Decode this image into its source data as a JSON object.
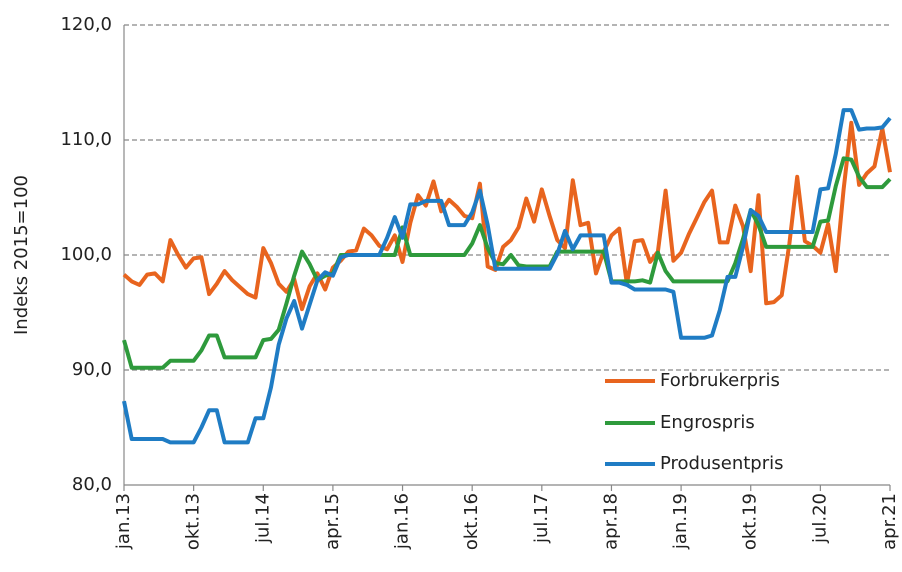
{
  "chart_data": {
    "type": "line",
    "ylabel": "Indeks 2015=100",
    "categories": [
      "jan.13",
      null,
      null,
      null,
      null,
      null,
      null,
      null,
      null,
      "okt.13",
      null,
      null,
      null,
      null,
      null,
      null,
      null,
      null,
      "jul.14",
      null,
      null,
      null,
      null,
      null,
      null,
      null,
      null,
      "apr.15",
      null,
      null,
      null,
      null,
      null,
      null,
      null,
      null,
      "jan.16",
      null,
      null,
      null,
      null,
      null,
      null,
      null,
      null,
      "okt.16",
      null,
      null,
      null,
      null,
      null,
      null,
      null,
      null,
      "jul.17",
      null,
      null,
      null,
      null,
      null,
      null,
      null,
      null,
      "apr.18",
      null,
      null,
      null,
      null,
      null,
      null,
      null,
      null,
      "jan.19",
      null,
      null,
      null,
      null,
      null,
      null,
      null,
      null,
      "okt.19",
      null,
      null,
      null,
      null,
      null,
      null,
      null,
      null,
      "jul.20",
      null,
      null,
      null,
      null,
      null,
      null,
      null,
      null,
      "apr.21"
    ],
    "series": [
      {
        "name": "Forbrukerpris",
        "color": "#e8641e",
        "values": [
          98.3,
          97.7,
          97.4,
          98.3,
          98.4,
          97.7,
          101.3,
          100,
          98.9,
          99.7,
          99.8,
          96.6,
          97.5,
          98.6,
          97.8,
          97.2,
          96.6,
          96.3,
          100.6,
          99.3,
          97.5,
          96.8,
          97.9,
          95.3,
          97.3,
          98.4,
          97,
          98.9,
          99.5,
          100.3,
          100.4,
          102.3,
          101.7,
          100.8,
          100.5,
          101.7,
          99.4,
          102.8,
          105.2,
          104.3,
          106.4,
          103.8,
          104.8,
          104.2,
          103.4,
          103.2,
          106.2,
          99,
          98.7,
          100.7,
          101.3,
          102.4,
          104.9,
          102.9,
          105.7,
          103.4,
          101.3,
          100.6,
          106.5,
          102.6,
          102.8,
          98.4,
          100.3,
          101.7,
          102.3,
          97.5,
          101.2,
          101.3,
          99.4,
          100.3,
          105.6,
          99.5,
          100.2,
          101.8,
          103.2,
          104.6,
          105.6,
          101.1,
          101.1,
          104.3,
          102.5,
          98.6,
          105.2,
          95.8,
          95.9,
          96.5,
          101,
          106.8,
          101.2,
          100.8,
          100.2,
          102.7,
          98.6,
          105.7,
          111.5,
          106.1,
          107.1,
          107.7,
          111,
          107.2
        ]
      },
      {
        "name": "Engrospris",
        "color": "#2e9a3c",
        "values": [
          92.6,
          90.2,
          90.2,
          90.2,
          90.2,
          90.2,
          90.8,
          90.8,
          90.8,
          90.8,
          91.7,
          93,
          93,
          91.1,
          91.1,
          91.1,
          91.1,
          91.1,
          92.6,
          92.7,
          93.5,
          95.8,
          98.2,
          100.3,
          99.2,
          97.8,
          98.2,
          98.4,
          100,
          100,
          100,
          100,
          100,
          100,
          100,
          100,
          102.4,
          100,
          100,
          100,
          100,
          100,
          100,
          100,
          100,
          101,
          102.6,
          100.6,
          99.3,
          99.2,
          100,
          99.1,
          99,
          99,
          99,
          99,
          100.3,
          100.3,
          100.3,
          100.3,
          100.3,
          100.3,
          100.3,
          97.7,
          97.7,
          97.7,
          97.7,
          97.8,
          97.6,
          100.2,
          98.6,
          97.7,
          97.7,
          97.7,
          97.7,
          97.7,
          97.7,
          97.7,
          97.7,
          99.3,
          101.4,
          103.9,
          102.6,
          100.7,
          100.7,
          100.7,
          100.7,
          100.7,
          100.7,
          100.7,
          102.9,
          103,
          106,
          108.4,
          108.3,
          106.8,
          105.9,
          105.9,
          105.9,
          106.6
        ]
      },
      {
        "name": "Produsentpris",
        "color": "#1f7cc4",
        "values": [
          87.3,
          84,
          84,
          84,
          84,
          84,
          83.7,
          83.7,
          83.7,
          83.7,
          85,
          86.5,
          86.5,
          83.7,
          83.7,
          83.7,
          83.7,
          85.8,
          85.8,
          88.5,
          92.2,
          94.5,
          96,
          93.6,
          95.7,
          97.8,
          98.5,
          98.2,
          99.8,
          100,
          100,
          100,
          100,
          100,
          101.5,
          103.3,
          101.5,
          104.4,
          104.4,
          104.7,
          104.7,
          104.7,
          102.6,
          102.6,
          102.6,
          103.7,
          105.6,
          102.6,
          98.8,
          98.8,
          98.8,
          98.8,
          98.8,
          98.8,
          98.8,
          98.8,
          100.1,
          102.1,
          100.5,
          101.7,
          101.7,
          101.7,
          101.7,
          97.6,
          97.6,
          97.4,
          97,
          97,
          97,
          97,
          97,
          96.8,
          92.8,
          92.8,
          92.8,
          92.8,
          93,
          95.2,
          98.1,
          98.1,
          100.7,
          103.9,
          103.4,
          102,
          102,
          102,
          102,
          102,
          102,
          102,
          105.7,
          105.8,
          108.8,
          112.6,
          112.6,
          110.9,
          111,
          111,
          111.1,
          111.9
        ]
      }
    ],
    "ylim": [
      80,
      120
    ],
    "yticks": [
      {
        "value": 80,
        "label": "80,0"
      },
      {
        "value": 90,
        "label": "90,0"
      },
      {
        "value": 100,
        "label": "100,0"
      },
      {
        "value": 110,
        "label": "110,0"
      },
      {
        "value": 120,
        "label": "120,0"
      }
    ],
    "grid": true,
    "legend": "lower right"
  }
}
